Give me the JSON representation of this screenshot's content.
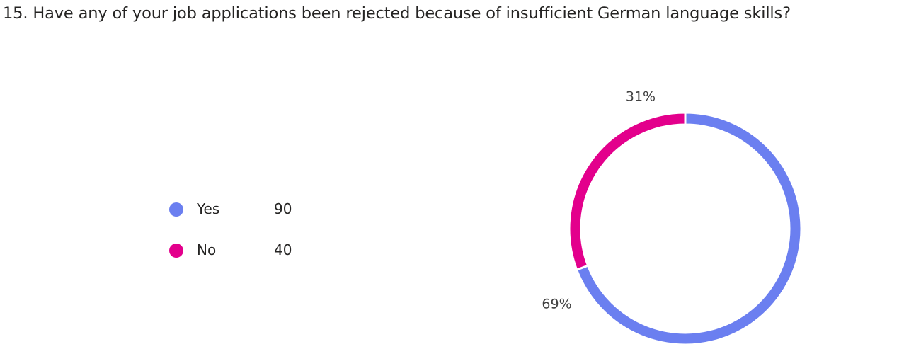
{
  "chart_data": {
    "type": "pie",
    "title": "15. Have any of your job applications been rejected because of insufficient German language skills?",
    "categories": [
      "Yes",
      "No"
    ],
    "values": [
      90,
      40
    ],
    "percent_labels": [
      "69%",
      "31%"
    ],
    "colors": [
      "#6b7ff0",
      "#e3008c"
    ],
    "donut": true,
    "legend_position": "left"
  },
  "legend": {
    "items": [
      {
        "label": "Yes",
        "count": "90",
        "color": "#6b7ff0"
      },
      {
        "label": "No",
        "count": "40",
        "color": "#e3008c"
      }
    ]
  }
}
